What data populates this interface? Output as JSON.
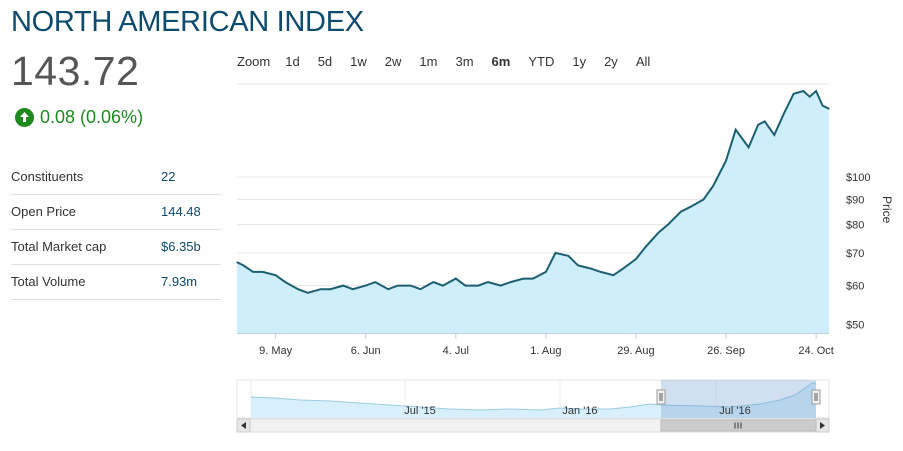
{
  "header": {
    "title": "NORTH AMERICAN INDEX",
    "price": "143.72",
    "change": "0.08 (0.06%)",
    "change_color": "#1e8a1e",
    "change_icon": "arrow-up-circle-icon"
  },
  "stats": [
    {
      "label": "Constituents",
      "value": "22"
    },
    {
      "label": "Open Price",
      "value": "144.48"
    },
    {
      "label": "Total Market cap",
      "value": "$6.35b"
    },
    {
      "label": "Total Volume",
      "value": "7.93m"
    }
  ],
  "zoom": {
    "label": "Zoom",
    "buttons": [
      "1d",
      "5d",
      "1w",
      "2w",
      "1m",
      "3m",
      "6m",
      "YTD",
      "1y",
      "2y",
      "All"
    ],
    "active": "6m"
  },
  "colors": {
    "line": "#1d5f72",
    "fill": "#cdeefa",
    "brand": "#0c4a6e"
  },
  "chart_data": {
    "type": "area",
    "ylabel": "Price",
    "scale": "log",
    "ylim": [
      48,
      155
    ],
    "ytick_values": [
      50,
      60,
      70,
      80,
      90,
      100
    ],
    "ytick_labels": [
      "$50",
      "$60",
      "$70",
      "$80",
      "$90",
      "$100"
    ],
    "xlim": [
      "2016-04-27",
      "2016-10-28"
    ],
    "xticks": [
      {
        "date": "2016-05-09",
        "label": "9. May"
      },
      {
        "date": "2016-06-06",
        "label": "6. Jun"
      },
      {
        "date": "2016-07-04",
        "label": "4. Jul"
      },
      {
        "date": "2016-08-01",
        "label": "1. Aug"
      },
      {
        "date": "2016-08-29",
        "label": "29. Aug"
      },
      {
        "date": "2016-09-26",
        "label": "26. Sep"
      },
      {
        "date": "2016-10-24",
        "label": "24. Oct"
      }
    ],
    "grid": true,
    "legend": "none",
    "series": [
      {
        "x": [
          "2016-04-27",
          "2016-04-29",
          "2016-05-02",
          "2016-05-05",
          "2016-05-09",
          "2016-05-12",
          "2016-05-16",
          "2016-05-19",
          "2016-05-23",
          "2016-05-26",
          "2016-05-30",
          "2016-06-02",
          "2016-06-06",
          "2016-06-09",
          "2016-06-13",
          "2016-06-16",
          "2016-06-20",
          "2016-06-23",
          "2016-06-27",
          "2016-06-30",
          "2016-07-04",
          "2016-07-07",
          "2016-07-11",
          "2016-07-14",
          "2016-07-18",
          "2016-07-21",
          "2016-07-25",
          "2016-07-28",
          "2016-08-01",
          "2016-08-04",
          "2016-08-08",
          "2016-08-11",
          "2016-08-15",
          "2016-08-18",
          "2016-08-22",
          "2016-08-25",
          "2016-08-29",
          "2016-09-01",
          "2016-09-05",
          "2016-09-08",
          "2016-09-12",
          "2016-09-15",
          "2016-09-19",
          "2016-09-22",
          "2016-09-26",
          "2016-09-29",
          "2016-10-03",
          "2016-10-06",
          "2016-10-08",
          "2016-10-11",
          "2016-10-14",
          "2016-10-17",
          "2016-10-20",
          "2016-10-22",
          "2016-10-24",
          "2016-10-26",
          "2016-10-28"
        ],
        "values": [
          67,
          66,
          64,
          64,
          63,
          61,
          59,
          58,
          59,
          59,
          60,
          59,
          60,
          61,
          59,
          60,
          60,
          59,
          61,
          60,
          62,
          60,
          60,
          61,
          60,
          61,
          62,
          62,
          64,
          70,
          69,
          66,
          65,
          64,
          63,
          65,
          68,
          72,
          77,
          80,
          85,
          87,
          90,
          96,
          108,
          125,
          115,
          128,
          130,
          122,
          135,
          148,
          150,
          146,
          150,
          140,
          138
        ]
      }
    ]
  },
  "navigator": {
    "labels": [
      "Jul '15",
      "Jan '16",
      "Jul '16"
    ],
    "scroll_icon": "scroll-grip-icon"
  }
}
